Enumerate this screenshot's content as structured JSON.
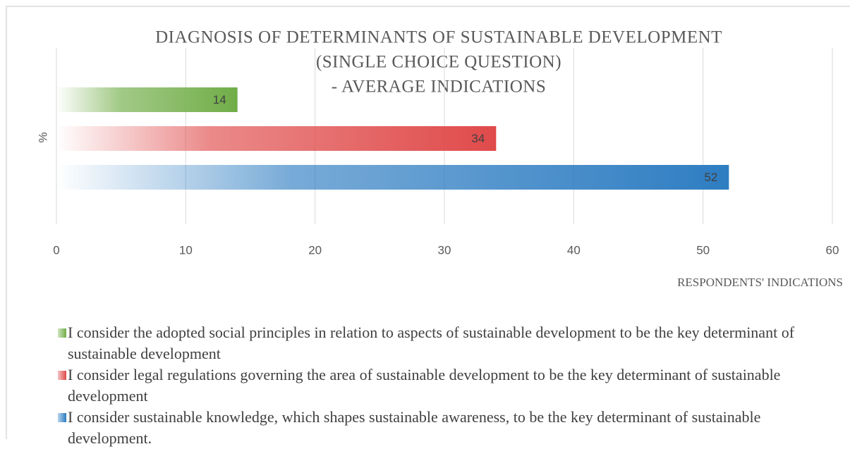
{
  "chart_data": {
    "type": "hbar",
    "title": [
      "DIAGNOSIS OF DETERMINANTS OF SUSTAINABLE DEVELOPMENT",
      "(SINGLE CHOICE QUESTION)",
      "- AVERAGE INDICATIONS"
    ],
    "x_label": "RESPONDENTS' INDICATIONS",
    "y_label": "%",
    "categories": [
      null
    ],
    "series": [
      {
        "name": "I consider the adopted social principles in relation to aspects of sustainable development to be the key determinant of sustainable development",
        "color": "#70ad47",
        "values": [
          14
        ]
      },
      {
        "name": "I consider legal regulations governing the area of sustainable development to be the key determinant of sustainable development",
        "color": "#e04a4a",
        "values": [
          34
        ]
      },
      {
        "name": "I consider sustainable knowledge, which shapes sustainable awareness, to be the key determinant of sustainable development.",
        "color": "#2e7dc2",
        "values": [
          52
        ]
      }
    ],
    "xlim": [
      0,
      60
    ],
    "xticks": [
      0,
      10,
      20,
      30,
      40,
      50,
      60
    ],
    "grid": true,
    "legend": "bottom"
  }
}
